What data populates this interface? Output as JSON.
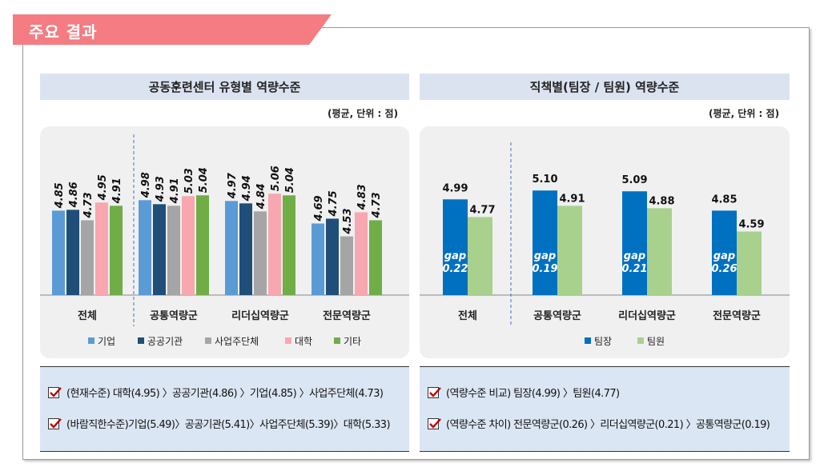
{
  "header": {
    "title": "주요 결과"
  },
  "left": {
    "heading": "공동훈련센터 유형별 역량수준",
    "unit": "(평균, 단위 : 점)",
    "notes": [
      "(현재수준) 대학(4.95) 〉공공기관(4.86) 〉기업(4.85) 〉사업주단체(4.73)",
      "(바람직한수준)기업(5.49)〉공공기관(5.41)〉사업주단체(5.39)〉대학(5.33)"
    ]
  },
  "right": {
    "heading": "직책별(팀장 / 팀원) 역량수준",
    "unit": "(평균, 단위 : 점)",
    "notes": [
      "(역량수준 비교) 팀장(4.99) 〉팀원(4.77)",
      "(역량수준 차이) 전문역량군(0.26) 〉리더십역량군(0.21) 〉공통역량군(0.19)"
    ]
  },
  "chart_data": [
    {
      "type": "bar",
      "categories": [
        "전체",
        "공통역량군",
        "리더십역량군",
        "전문역량군"
      ],
      "series": [
        {
          "name": "기업",
          "values": [
            4.85,
            4.98,
            4.97,
            4.69
          ],
          "color": "#5b9bd5"
        },
        {
          "name": "공공기관",
          "values": [
            4.86,
            4.93,
            4.94,
            4.75
          ],
          "color": "#1f4e79"
        },
        {
          "name": "사업주단체",
          "values": [
            4.73,
            4.91,
            4.84,
            4.53
          ],
          "color": "#a5a5a5"
        },
        {
          "name": "대학",
          "values": [
            4.95,
            5.03,
            5.06,
            4.83
          ],
          "color": "#f8a7b0"
        },
        {
          "name": "기타",
          "values": [
            4.91,
            5.04,
            5.04,
            4.73
          ],
          "color": "#70ad47"
        }
      ],
      "ylim": [
        3.8,
        5.5
      ],
      "legend": "bottom"
    },
    {
      "type": "bar",
      "categories": [
        "전체",
        "공통역량군",
        "리더십역량군",
        "전문역량군"
      ],
      "series": [
        {
          "name": "팀장",
          "values": [
            4.99,
            5.1,
            5.09,
            4.85
          ],
          "color": "#0070c0"
        },
        {
          "name": "팀원",
          "values": [
            4.77,
            4.91,
            4.88,
            4.59
          ],
          "color": "#a9d18e"
        }
      ],
      "gap_labels": [
        "gap\n0.22",
        "gap\n0.19",
        "gap\n0.21",
        "gap\n0.26"
      ],
      "ylim": [
        3.8,
        5.5
      ],
      "legend": "bottom"
    }
  ]
}
